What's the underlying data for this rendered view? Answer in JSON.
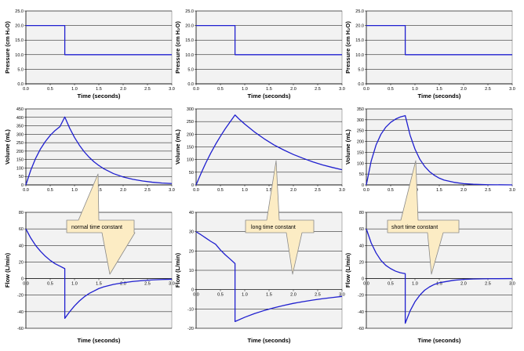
{
  "colors": {
    "plot_bg": "#f2f2f2",
    "grid": "#000000",
    "curve": "#1f1fcf",
    "callout_fill": "#fcecc4",
    "callout_stroke": "#8a8a8a"
  },
  "chart_data": [
    {
      "id": "p1",
      "type": "line",
      "row": 0,
      "col": 0,
      "ylabel": "Pressure (cm H₂O)",
      "xlabel": "Time (seconds)",
      "xlim": [
        0,
        3
      ],
      "ylim": [
        0,
        25
      ],
      "xticks": [
        0,
        0.5,
        1,
        1.5,
        2,
        2.5,
        3
      ],
      "xtick_labels": [
        "0.0",
        "0.5",
        "1.0",
        "1.5",
        "2.0",
        "2.5",
        "3.0"
      ],
      "yticks": [
        0,
        5,
        10,
        15,
        20,
        25
      ],
      "ytick_labels": [
        "0.0",
        "5.0",
        "10.0",
        "15.0",
        "20.0",
        "25.0"
      ],
      "x_axis_at": "bottom",
      "x": [
        0,
        0.8,
        0.8,
        3
      ],
      "y": [
        20,
        20,
        10,
        10
      ]
    },
    {
      "id": "p2",
      "type": "line",
      "row": 0,
      "col": 1,
      "ylabel": "Pressure (cm H₂O)",
      "xlabel": "Time (seconds)",
      "xlim": [
        0,
        3
      ],
      "ylim": [
        0,
        25
      ],
      "xticks": [
        0,
        0.5,
        1,
        1.5,
        2,
        2.5,
        3
      ],
      "xtick_labels": [
        "0.0",
        "0.5",
        "1.0",
        "1.5",
        "2.0",
        "2.5",
        "3.0"
      ],
      "yticks": [
        0,
        5,
        10,
        15,
        20,
        25
      ],
      "ytick_labels": [
        "0.0",
        "5.0",
        "10.0",
        "15.0",
        "20.0",
        "25.0"
      ],
      "x_axis_at": "bottom",
      "x": [
        0,
        0.8,
        0.8,
        3
      ],
      "y": [
        20,
        20,
        10,
        10
      ]
    },
    {
      "id": "p3",
      "type": "line",
      "row": 0,
      "col": 2,
      "ylabel": "Pressure (cm H₂O)",
      "xlabel": "Time (seconds)",
      "xlim": [
        0,
        3
      ],
      "ylim": [
        0,
        25
      ],
      "xticks": [
        0,
        0.5,
        1,
        1.5,
        2,
        2.5,
        3
      ],
      "xtick_labels": [
        "0.0",
        "0.5",
        "1.0",
        "1.5",
        "2.0",
        "2.5",
        "3.0"
      ],
      "yticks": [
        0,
        5,
        10,
        15,
        20,
        25
      ],
      "ytick_labels": [
        "0.0",
        "5.0",
        "10.0",
        "15.0",
        "20.0",
        "25.0"
      ],
      "x_axis_at": "bottom",
      "x": [
        0,
        0.8,
        0.8,
        3
      ],
      "y": [
        20,
        20,
        10,
        10
      ]
    },
    {
      "id": "v1",
      "type": "line",
      "row": 1,
      "col": 0,
      "ylabel": "Volume (mL)",
      "xlabel": "",
      "xlim": [
        0,
        3
      ],
      "ylim": [
        0,
        450
      ],
      "xticks": [
        0,
        0.5,
        1,
        1.5,
        2,
        2.5,
        3
      ],
      "xtick_labels": [
        "0.0",
        "0.5",
        "1.0",
        "1.5",
        "2.0",
        "2.5",
        "3.0"
      ],
      "yticks": [
        0,
        50,
        100,
        150,
        200,
        250,
        300,
        350,
        400,
        450
      ],
      "ytick_labels": [
        "0",
        "50",
        "100",
        "150",
        "200",
        "250",
        "300",
        "350",
        "400",
        "450"
      ],
      "x_axis_at": "bottom",
      "x": [
        0,
        0.1,
        0.2,
        0.3,
        0.4,
        0.5,
        0.6,
        0.7,
        0.8,
        0.9,
        1.0,
        1.1,
        1.2,
        1.3,
        1.4,
        1.5,
        1.6,
        1.8,
        2.0,
        2.2,
        2.4,
        2.6,
        2.8,
        3.0
      ],
      "y": [
        0,
        87,
        157,
        213,
        257,
        293,
        322,
        345,
        402,
        336,
        281,
        235,
        196,
        164,
        137,
        115,
        96,
        67,
        47,
        33,
        23,
        16,
        11,
        8
      ]
    },
    {
      "id": "v2",
      "type": "line",
      "row": 1,
      "col": 1,
      "ylabel": "Volume (mL)",
      "xlabel": "",
      "xlim": [
        0,
        3
      ],
      "ylim": [
        0,
        300
      ],
      "xticks": [
        0,
        0.5,
        1,
        1.5,
        2,
        2.5,
        3
      ],
      "xtick_labels": [
        "0.0",
        "0.5",
        "1.0",
        "1.5",
        "2.0",
        "2.5",
        "3.0"
      ],
      "yticks": [
        0,
        50,
        100,
        150,
        200,
        250,
        300
      ],
      "ytick_labels": [
        "0",
        "50",
        "100",
        "150",
        "200",
        "250",
        "300"
      ],
      "x_axis_at": "bottom",
      "x": [
        0,
        0.1,
        0.2,
        0.3,
        0.4,
        0.5,
        0.6,
        0.7,
        0.8,
        0.9,
        1.0,
        1.2,
        1.4,
        1.6,
        1.8,
        2.0,
        2.2,
        2.4,
        2.6,
        2.8,
        3.0
      ],
      "y": [
        0,
        45,
        87,
        125,
        160,
        192,
        222,
        249,
        276,
        257,
        240,
        209,
        182,
        158,
        138,
        120,
        105,
        91,
        79,
        69,
        60
      ]
    },
    {
      "id": "v3",
      "type": "line",
      "row": 1,
      "col": 2,
      "ylabel": "Volume (mL)",
      "xlabel": "",
      "xlim": [
        0,
        3
      ],
      "ylim": [
        0,
        350
      ],
      "xticks": [
        0,
        0.5,
        1,
        1.5,
        2,
        2.5,
        3
      ],
      "xtick_labels": [
        "0.0",
        "0.5",
        "1.0",
        "1.5",
        "2.0",
        "2.5",
        "3.0"
      ],
      "yticks": [
        0,
        50,
        100,
        150,
        200,
        250,
        300,
        350
      ],
      "ytick_labels": [
        "0",
        "50",
        "100",
        "150",
        "200",
        "250",
        "300",
        "350"
      ],
      "x_axis_at": "bottom",
      "x": [
        0,
        0.1,
        0.2,
        0.3,
        0.4,
        0.5,
        0.6,
        0.7,
        0.8,
        0.9,
        1.0,
        1.1,
        1.2,
        1.3,
        1.4,
        1.5,
        1.6,
        1.8,
        2.0,
        2.2,
        2.5,
        3.0
      ],
      "y": [
        0,
        110,
        184,
        233,
        266,
        288,
        303,
        313,
        319,
        229,
        165,
        118,
        85,
        61,
        44,
        31,
        22,
        12,
        6,
        3,
        1,
        0
      ]
    },
    {
      "id": "f1",
      "type": "line",
      "row": 2,
      "col": 0,
      "ylabel": "Flow (L/min)",
      "xlabel": "Time (seconds)",
      "xlim": [
        0,
        3
      ],
      "ylim": [
        -60,
        80
      ],
      "xticks": [
        0,
        0.5,
        1,
        1.5,
        2,
        2.5,
        3
      ],
      "xtick_labels": [
        "0.0",
        "0.5",
        "1.0",
        "1.5",
        "2.0",
        "2.5",
        "3.0"
      ],
      "yticks": [
        -60,
        -40,
        -20,
        0,
        20,
        40,
        60,
        80
      ],
      "ytick_labels": [
        "-60",
        "-40",
        "-20",
        "0",
        "20",
        "40",
        "60",
        "80"
      ],
      "x_axis_at": "zero",
      "x": [
        0,
        0.1,
        0.2,
        0.3,
        0.4,
        0.5,
        0.6,
        0.7,
        0.8,
        0.8,
        0.9,
        1.0,
        1.1,
        1.2,
        1.3,
        1.4,
        1.5,
        1.6,
        1.8,
        2.0,
        2.2,
        2.4,
        2.6,
        2.8,
        3.0
      ],
      "y": [
        60,
        49,
        40,
        33,
        27,
        22,
        18,
        15,
        12,
        -48,
        -40,
        -33,
        -27,
        -22,
        -18,
        -15,
        -12,
        -10,
        -7,
        -5,
        -3.5,
        -2.4,
        -1.6,
        -1.1,
        -0.8
      ]
    },
    {
      "id": "f2",
      "type": "line",
      "row": 2,
      "col": 1,
      "ylabel": "Flow (L/min)",
      "xlabel": "Time (seconds)",
      "xlim": [
        0,
        3
      ],
      "ylim": [
        -20,
        40
      ],
      "xticks": [
        0,
        0.5,
        1,
        1.5,
        2,
        2.5,
        3
      ],
      "xtick_labels": [
        "0.0",
        "0.5",
        "1.0",
        "1.5",
        "2.0",
        "2.5",
        "3.0"
      ],
      "yticks": [
        -20,
        -10,
        0,
        10,
        20,
        30,
        40
      ],
      "ytick_labels": [
        "-20",
        "-10",
        "0",
        "10",
        "20",
        "30",
        "40"
      ],
      "x_axis_at": "zero",
      "x": [
        0,
        0.1,
        0.2,
        0.3,
        0.4,
        0.5,
        0.6,
        0.7,
        0.8,
        0.8,
        1.0,
        1.2,
        1.4,
        1.6,
        1.8,
        2.0,
        2.2,
        2.4,
        2.6,
        2.8,
        3.0
      ],
      "y": [
        30,
        28.4,
        26.7,
        25.0,
        23.5,
        20.5,
        18.0,
        15.8,
        13.5,
        -16.5,
        -14.3,
        -12.4,
        -10.8,
        -9.4,
        -8.2,
        -7.1,
        -6.2,
        -5.4,
        -4.7,
        -4.1,
        -3.5
      ]
    },
    {
      "id": "f3",
      "type": "line",
      "row": 2,
      "col": 2,
      "ylabel": "Flow (L/min)",
      "xlabel": "Time (seconds)",
      "xlim": [
        0,
        3
      ],
      "ylim": [
        -60,
        80
      ],
      "xticks": [
        0,
        0.5,
        1,
        1.5,
        2,
        2.5,
        3
      ],
      "xtick_labels": [
        "0.0",
        "0.5",
        "1.0",
        "1.5",
        "2.0",
        "2.5",
        "3.0"
      ],
      "yticks": [
        -60,
        -40,
        -20,
        0,
        20,
        40,
        60,
        80
      ],
      "ytick_labels": [
        "-60",
        "-40",
        "-20",
        "0",
        "20",
        "40",
        "60",
        "80"
      ],
      "x_axis_at": "zero",
      "x": [
        0,
        0.1,
        0.2,
        0.3,
        0.4,
        0.5,
        0.6,
        0.7,
        0.8,
        0.8,
        0.9,
        1.0,
        1.1,
        1.2,
        1.3,
        1.4,
        1.5,
        1.6,
        1.8,
        2.0,
        2.2,
        2.5,
        3.0
      ],
      "y": [
        60,
        43,
        31,
        22,
        16,
        12,
        9,
        7,
        6,
        -54,
        -39,
        -28,
        -20,
        -14,
        -10,
        -7,
        -5,
        -4,
        -2,
        -1,
        -0.5,
        -0.2,
        0
      ]
    }
  ],
  "callouts": [
    {
      "id": "c1",
      "text": "normal time constant"
    },
    {
      "id": "c2",
      "text": "long time constant"
    },
    {
      "id": "c3",
      "text": "short time constant"
    }
  ]
}
